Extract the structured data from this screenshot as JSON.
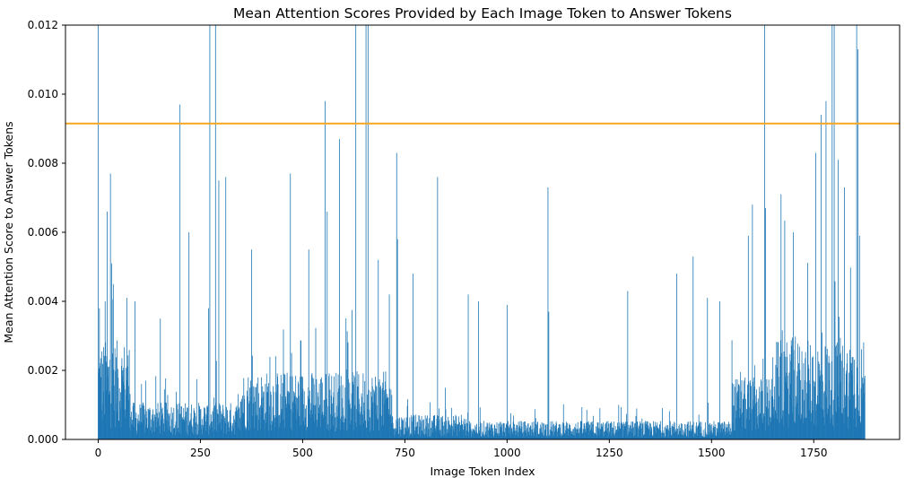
{
  "chart_data": {
    "type": "bar",
    "title": "Mean Attention Scores Provided by Each Image Token to Answer Tokens",
    "xlabel": "Image Token Index",
    "ylabel": "Mean Attention Score to Answer Tokens",
    "xlim": [
      -80,
      1960
    ],
    "ylim": [
      0,
      0.012
    ],
    "xticks": [
      0,
      250,
      500,
      750,
      1000,
      1250,
      1500,
      1750
    ],
    "xtick_labels": [
      "0",
      "250",
      "500",
      "750",
      "1000",
      "1250",
      "1500",
      "1750"
    ],
    "yticks": [
      0,
      0.002,
      0.004,
      0.006,
      0.008,
      0.01,
      0.012
    ],
    "ytick_labels": [
      "0.000",
      "0.002",
      "0.004",
      "0.006",
      "0.008",
      "0.010",
      "0.012"
    ],
    "bar_color": "#1f77b4",
    "threshold_line": {
      "value": 0.00915,
      "color": "#f5a623"
    },
    "n_tokens": 1876,
    "grid": false,
    "notable_values": [
      {
        "x": 0,
        "y": 0.012
      },
      {
        "x": 3,
        "y": 0.0038
      },
      {
        "x": 17,
        "y": 0.004
      },
      {
        "x": 22,
        "y": 0.0066
      },
      {
        "x": 30,
        "y": 0.0077
      },
      {
        "x": 33,
        "y": 0.0051
      },
      {
        "x": 37,
        "y": 0.0045
      },
      {
        "x": 70,
        "y": 0.0041
      },
      {
        "x": 90,
        "y": 0.004
      },
      {
        "x": 152,
        "y": 0.0035
      },
      {
        "x": 200,
        "y": 0.0097
      },
      {
        "x": 222,
        "y": 0.006
      },
      {
        "x": 270,
        "y": 0.0038
      },
      {
        "x": 273,
        "y": 0.012
      },
      {
        "x": 287,
        "y": 0.012
      },
      {
        "x": 295,
        "y": 0.0075
      },
      {
        "x": 312,
        "y": 0.0076
      },
      {
        "x": 375,
        "y": 0.0055
      },
      {
        "x": 470,
        "y": 0.0077
      },
      {
        "x": 515,
        "y": 0.0055
      },
      {
        "x": 555,
        "y": 0.0098
      },
      {
        "x": 560,
        "y": 0.0066
      },
      {
        "x": 590,
        "y": 0.0087
      },
      {
        "x": 630,
        "y": 0.012
      },
      {
        "x": 655,
        "y": 0.012
      },
      {
        "x": 660,
        "y": 0.012
      },
      {
        "x": 685,
        "y": 0.0052
      },
      {
        "x": 712,
        "y": 0.0042
      },
      {
        "x": 730,
        "y": 0.0083
      },
      {
        "x": 732,
        "y": 0.0058
      },
      {
        "x": 770,
        "y": 0.0048
      },
      {
        "x": 830,
        "y": 0.0076
      },
      {
        "x": 905,
        "y": 0.0042
      },
      {
        "x": 930,
        "y": 0.004
      },
      {
        "x": 1000,
        "y": 0.0039
      },
      {
        "x": 1100,
        "y": 0.0073
      },
      {
        "x": 1102,
        "y": 0.0037
      },
      {
        "x": 1295,
        "y": 0.0043
      },
      {
        "x": 1415,
        "y": 0.0048
      },
      {
        "x": 1455,
        "y": 0.0053
      },
      {
        "x": 1490,
        "y": 0.0041
      },
      {
        "x": 1520,
        "y": 0.004
      },
      {
        "x": 1590,
        "y": 0.0059
      },
      {
        "x": 1600,
        "y": 0.0068
      },
      {
        "x": 1630,
        "y": 0.012
      },
      {
        "x": 1632,
        "y": 0.0067
      },
      {
        "x": 1670,
        "y": 0.0071
      },
      {
        "x": 1700,
        "y": 0.006
      },
      {
        "x": 1755,
        "y": 0.0083
      },
      {
        "x": 1768,
        "y": 0.0094
      },
      {
        "x": 1780,
        "y": 0.0098
      },
      {
        "x": 1795,
        "y": 0.012
      },
      {
        "x": 1800,
        "y": 0.012
      },
      {
        "x": 1810,
        "y": 0.0081
      },
      {
        "x": 1825,
        "y": 0.0073
      },
      {
        "x": 1855,
        "y": 0.012
      },
      {
        "x": 1858,
        "y": 0.0113
      },
      {
        "x": 1862,
        "y": 0.0059
      }
    ]
  }
}
